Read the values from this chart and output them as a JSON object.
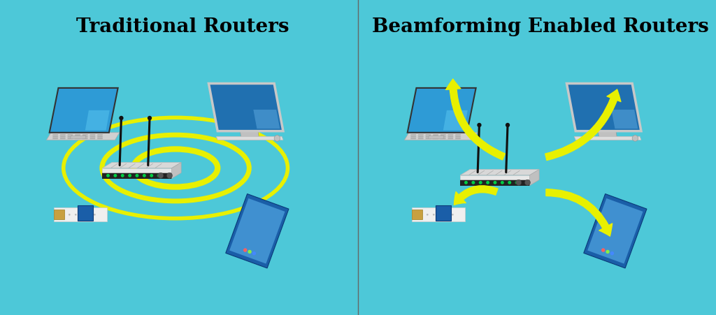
{
  "title_left": "Traditional Routers",
  "title_right": "Beamforming Enabled Routers",
  "bg_color": "#4DC8D8",
  "title_fontsize": 20,
  "fig_width": 10.24,
  "fig_height": 4.51,
  "dpi": 100,
  "ring_color": "#E8F000",
  "arrow_color": "#E8F000",
  "router_white": "#F0F0F0",
  "router_dark": "#2A2A2A",
  "laptop_screen": "#3A9BD5",
  "laptop_body": "#D0D0D0",
  "monitor_screen": "#2E8BC0",
  "phone_color": "#1A5EA8",
  "watch_band": "#F5F5F5",
  "watch_face": "#1A5EA8"
}
